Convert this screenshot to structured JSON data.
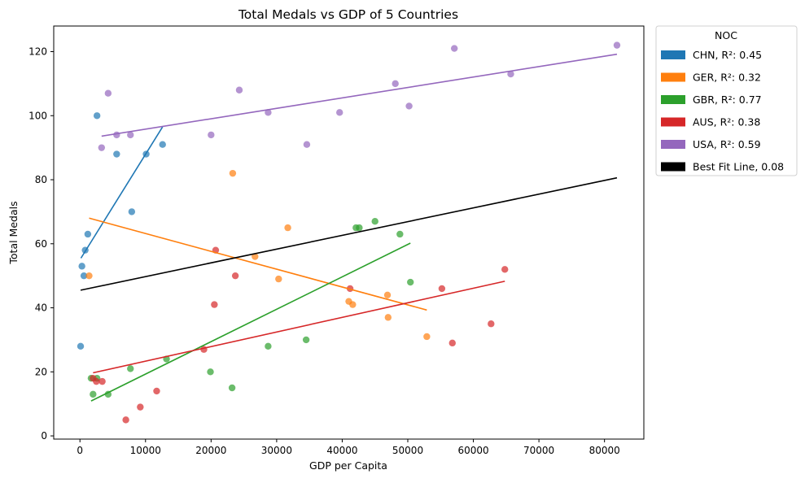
{
  "chart_data": {
    "type": "scatter",
    "title": "Total Medals vs GDP of 5 Countries",
    "xlabel": "GDP per Capita",
    "ylabel": "Total Medals",
    "xlim": [
      -4000,
      86000
    ],
    "ylim": [
      -1,
      128
    ],
    "xticks": [
      0,
      10000,
      20000,
      30000,
      40000,
      50000,
      60000,
      70000,
      80000
    ],
    "yticks": [
      0,
      20,
      40,
      60,
      80,
      100,
      120
    ],
    "grid": false,
    "legend": {
      "title": "NOC",
      "placement": "outside-top-right",
      "entries": [
        {
          "label": "CHN, R²: 0.45",
          "color": "#1f77b4"
        },
        {
          "label": "GER, R²: 0.32",
          "color": "#ff7f0e"
        },
        {
          "label": "GBR, R²: 0.77",
          "color": "#2ca02c"
        },
        {
          "label": "AUS, R²: 0.38",
          "color": "#d62728"
        },
        {
          "label": "USA, R²: 0.59",
          "color": "#9467bd"
        },
        {
          "label": "Best Fit Line, 0.08",
          "color": "#000000"
        }
      ]
    },
    "series": [
      {
        "name": "CHN",
        "color": "#1f77b4",
        "points": [
          [
            100,
            28
          ],
          [
            300,
            53
          ],
          [
            600,
            50
          ],
          [
            800,
            58
          ],
          [
            1200,
            63
          ],
          [
            2600,
            100
          ],
          [
            5600,
            88
          ],
          [
            7900,
            70
          ],
          [
            10100,
            88
          ],
          [
            12600,
            91
          ]
        ],
        "fit": [
          [
            150,
            55.5
          ],
          [
            12600,
            96.5
          ]
        ]
      },
      {
        "name": "GER",
        "color": "#ff7f0e",
        "points": [
          [
            1400,
            50
          ],
          [
            23300,
            82
          ],
          [
            26700,
            56
          ],
          [
            30300,
            49
          ],
          [
            31700,
            65
          ],
          [
            41000,
            42
          ],
          [
            41600,
            41
          ],
          [
            46900,
            44
          ],
          [
            47000,
            37
          ],
          [
            52900,
            31
          ]
        ],
        "fit": [
          [
            1400,
            68
          ],
          [
            52900,
            39.3
          ]
        ]
      },
      {
        "name": "GBR",
        "color": "#2ca02c",
        "points": [
          [
            1700,
            18
          ],
          [
            2000,
            13
          ],
          [
            2600,
            18
          ],
          [
            4300,
            13
          ],
          [
            7700,
            21
          ],
          [
            13200,
            24
          ],
          [
            19900,
            20
          ],
          [
            23200,
            15
          ],
          [
            28700,
            28
          ],
          [
            34500,
            30
          ],
          [
            42100,
            65
          ],
          [
            42600,
            65
          ],
          [
            45000,
            67
          ],
          [
            48800,
            63
          ],
          [
            50400,
            48
          ]
        ],
        "fit": [
          [
            1700,
            10.9
          ],
          [
            50400,
            60.2
          ]
        ]
      },
      {
        "name": "AUS",
        "color": "#d62728",
        "points": [
          [
            2000,
            18
          ],
          [
            2500,
            17
          ],
          [
            3400,
            17
          ],
          [
            7000,
            5
          ],
          [
            9200,
            9
          ],
          [
            11700,
            14
          ],
          [
            18900,
            27
          ],
          [
            20500,
            41
          ],
          [
            20700,
            58
          ],
          [
            23700,
            50
          ],
          [
            41200,
            46
          ],
          [
            55200,
            46
          ],
          [
            56800,
            29
          ],
          [
            62700,
            35
          ],
          [
            64800,
            52
          ]
        ],
        "fit": [
          [
            2000,
            19.7
          ],
          [
            64800,
            48.3
          ]
        ]
      },
      {
        "name": "USA",
        "color": "#9467bd",
        "points": [
          [
            3300,
            90
          ],
          [
            4300,
            107
          ],
          [
            5600,
            94
          ],
          [
            7700,
            94
          ],
          [
            20000,
            94
          ],
          [
            24300,
            108
          ],
          [
            28700,
            101
          ],
          [
            34600,
            91
          ],
          [
            39600,
            101
          ],
          [
            48100,
            110
          ],
          [
            50200,
            103
          ],
          [
            57100,
            121
          ],
          [
            65700,
            113
          ],
          [
            81900,
            122
          ]
        ],
        "fit": [
          [
            3300,
            93.6
          ],
          [
            81900,
            119.2
          ]
        ]
      },
      {
        "name": "Best Fit Line",
        "color": "#000000",
        "points": [],
        "fit": [
          [
            100,
            45.5
          ],
          [
            81900,
            80.6
          ]
        ]
      }
    ]
  }
}
